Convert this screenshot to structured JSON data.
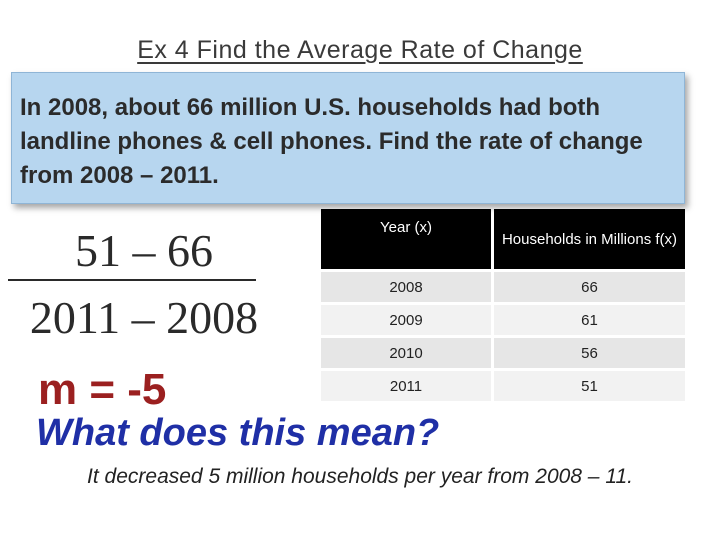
{
  "slide": {
    "title": "Ex 4 Find the Average Rate of Change",
    "problem": "In 2008, about 66 million U.S. households had both landline phones & cell phones.  Find the rate of change from 2008 – 2011.",
    "fraction": {
      "numerator": "51 – 66",
      "denominator": "2011 – 2008"
    },
    "slope": "m = -5",
    "question": "What does this mean?",
    "answer": "It decreased 5 million households per year from 2008 – 11."
  },
  "table": {
    "headers": [
      "Year (x)",
      "Households in Millions f(x)"
    ],
    "rows": [
      {
        "year": "2008",
        "households": "66"
      },
      {
        "year": "2009",
        "households": "61"
      },
      {
        "year": "2010",
        "households": "56"
      },
      {
        "year": "2011",
        "households": "51"
      }
    ]
  },
  "colors": {
    "box_bg": "#b7d6ef",
    "slope_red": "#9b2020",
    "question_blue": "#1f2fa6"
  }
}
